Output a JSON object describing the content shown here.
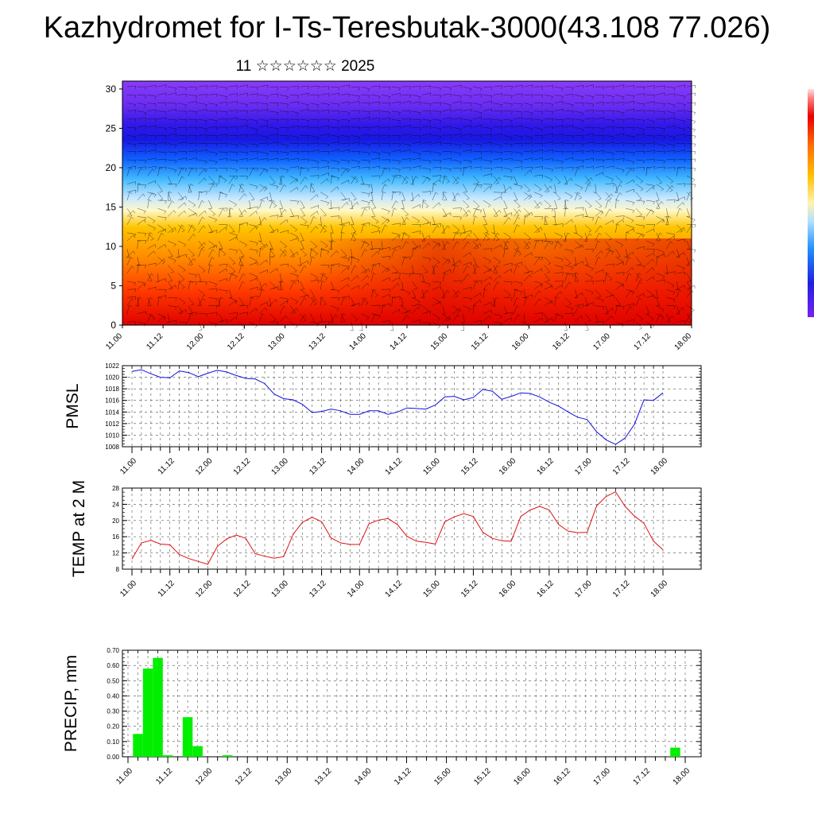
{
  "title": "Kazhydromet for I-Ts-Teresbutak-3000(43.108 77.026)",
  "subtitle": "11 ☆☆☆☆☆☆ 2025",
  "colors": {
    "pmsl_line": "#1010e0",
    "temp_line": "#e01010",
    "precip_bar": "#00ee00",
    "grid": "#555555"
  },
  "chart_data": [
    {
      "type": "heatmap",
      "name_hint": "cross-section",
      "x_tick_labels": [
        "11.00",
        "11.12",
        "12.00",
        "12.12",
        "13.00",
        "13.12",
        "14.00",
        "14.12",
        "15.00",
        "15.12",
        "16.00",
        "16.12",
        "17.00",
        "17.12",
        "18.00"
      ],
      "y_tick_labels": [
        "0",
        "5",
        "10",
        "15",
        "20",
        "25",
        "30"
      ],
      "ylim": [
        0,
        31
      ],
      "colormap": "rainbow (violet-blue-cyan-yellow-orange-red)",
      "overlay": "wind barbs",
      "colorbar": "right edge, unlabeled"
    },
    {
      "type": "line",
      "ylabel": "PMSL",
      "ylim": [
        1008,
        1022
      ],
      "y_ticks": [
        1008,
        1010,
        1012,
        1014,
        1016,
        1018,
        1020,
        1022
      ],
      "x_tick_labels": [
        "11.00",
        "11.12",
        "12.00",
        "12.12",
        "13.00",
        "13.12",
        "14.00",
        "14.12",
        "15.00",
        "15.12",
        "16.00",
        "16.12",
        "17.00",
        "17.12",
        "18.00"
      ],
      "grid": true,
      "values": [
        1021.0,
        1021.3,
        1020.6,
        1020.0,
        1019.9,
        1021.1,
        1020.8,
        1020.1,
        1020.7,
        1021.2,
        1020.9,
        1020.3,
        1019.8,
        1019.7,
        1018.9,
        1017.1,
        1016.3,
        1016.1,
        1015.3,
        1013.9,
        1014.1,
        1014.5,
        1014.2,
        1013.6,
        1013.6,
        1014.2,
        1014.2,
        1013.6,
        1014.0,
        1014.7,
        1014.6,
        1014.5,
        1015.2,
        1016.6,
        1016.7,
        1016.1,
        1016.5,
        1017.9,
        1017.6,
        1016.2,
        1016.7,
        1017.3,
        1017.2,
        1016.6,
        1015.7,
        1015.0,
        1014.0,
        1013.1,
        1012.7,
        1010.6,
        1009.2,
        1008.4,
        1009.5,
        1011.9,
        1016.1,
        1016.0,
        1017.3
      ]
    },
    {
      "type": "line",
      "ylabel": "TEMP at 2 M",
      "ylim": [
        8,
        28
      ],
      "y_ticks": [
        8,
        12,
        16,
        20,
        24,
        28
      ],
      "x_tick_labels": [
        "11.00",
        "11.12",
        "12.00",
        "12.12",
        "13.00",
        "13.12",
        "14.00",
        "14.12",
        "15.00",
        "15.12",
        "16.00",
        "16.12",
        "17.00",
        "17.12",
        "18.00"
      ],
      "grid": true,
      "values": [
        10.5,
        14.5,
        15.1,
        14.2,
        14.0,
        11.6,
        10.6,
        9.9,
        9.2,
        13.6,
        15.5,
        16.4,
        15.6,
        11.8,
        11.2,
        10.7,
        11.1,
        16.6,
        19.6,
        20.8,
        19.7,
        15.7,
        14.5,
        14.1,
        14.1,
        19.2,
        20.1,
        20.5,
        19.0,
        16.1,
        14.9,
        14.6,
        14.2,
        19.7,
        20.9,
        21.7,
        21.0,
        17.1,
        15.6,
        15.0,
        14.9,
        21.0,
        22.6,
        23.5,
        22.6,
        19.0,
        17.4,
        17.0,
        17.1,
        23.6,
        25.9,
        27.1,
        23.5,
        21.1,
        19.3,
        14.9,
        12.8
      ]
    },
    {
      "type": "bar",
      "ylabel": "PRECIP, mm",
      "ylim": [
        0,
        0.7
      ],
      "y_tick_labels": [
        "0.00",
        "0.10",
        "0.20",
        "0.30",
        "0.40",
        "0.50",
        "0.60",
        "0.70"
      ],
      "x_tick_labels": [
        "11.00",
        "11.12",
        "12.00",
        "12.12",
        "13.00",
        "13.12",
        "14.00",
        "14.12",
        "15.00",
        "15.12",
        "16.00",
        "16.12",
        "17.00",
        "17.12",
        "18.00"
      ],
      "grid": true,
      "values": [
        0.0,
        0.15,
        0.58,
        0.65,
        0.01,
        0.0,
        0.26,
        0.07,
        0.0,
        0.0,
        0.01,
        0,
        0,
        0,
        0,
        0,
        0,
        0,
        0,
        0,
        0,
        0,
        0,
        0,
        0,
        0,
        0,
        0,
        0,
        0,
        0,
        0,
        0,
        0,
        0,
        0,
        0,
        0,
        0,
        0,
        0,
        0,
        0,
        0,
        0,
        0,
        0,
        0,
        0,
        0,
        0,
        0,
        0,
        0,
        0,
        0.06,
        0
      ]
    }
  ]
}
